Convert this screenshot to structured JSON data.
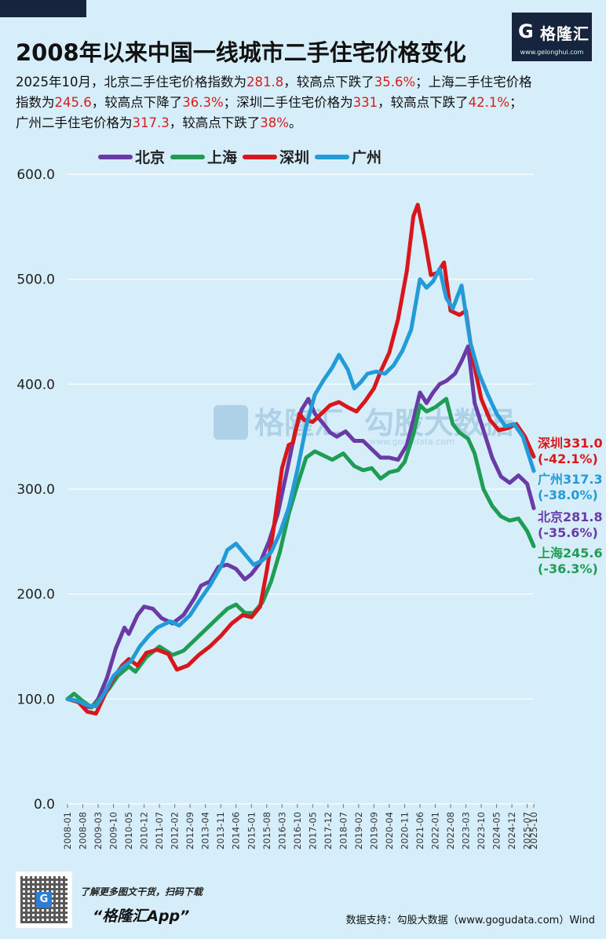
{
  "title": "2008年以来中国一线城市二手住宅价格变化",
  "logo": {
    "mark": "G",
    "name": "格隆汇",
    "url": "www.gelonghui.com"
  },
  "description": {
    "line1": [
      {
        "t": "2025年10月，北京二手住宅价格指数为"
      },
      {
        "t": "281.8",
        "hl": true
      },
      {
        "t": "，较高点下跌了"
      },
      {
        "t": "35.6%",
        "hl": true
      },
      {
        "t": "；上海二手住宅价格"
      }
    ],
    "line2": [
      {
        "t": "指数为"
      },
      {
        "t": "245.6",
        "hl": true
      },
      {
        "t": "，较高点下降了"
      },
      {
        "t": "36.3%",
        "hl": true
      },
      {
        "t": "；深圳二手住宅价格为"
      },
      {
        "t": "331",
        "hl": true
      },
      {
        "t": "，较高点下跌了"
      },
      {
        "t": "42.1%",
        "hl": true
      },
      {
        "t": "；"
      }
    ],
    "line3": [
      {
        "t": "广州二手住宅价格为"
      },
      {
        "t": "317.3",
        "hl": true
      },
      {
        "t": "，较高点下跌了"
      },
      {
        "t": "38%",
        "hl": true
      },
      {
        "t": "。"
      }
    ]
  },
  "watermark": {
    "brand": "格隆汇",
    "sub": "勾股大数据",
    "url": "www.gogudata.com"
  },
  "chart_data": {
    "type": "line",
    "ylim": [
      0,
      600
    ],
    "yticks": [
      "0.0",
      "100.0",
      "200.0",
      "300.0",
      "400.0",
      "500.0",
      "600.0"
    ],
    "x_labels": [
      "2008-01",
      "2008-08",
      "2009-03",
      "2009-10",
      "2010-05",
      "2010-12",
      "2011-07",
      "2012-02",
      "2012-09",
      "2013-04",
      "2013-11",
      "2014-06",
      "2015-01",
      "2015-08",
      "2016-03",
      "2016-10",
      "2017-05",
      "2017-12",
      "2018-07",
      "2019-02",
      "2019-09",
      "2020-04",
      "2020-11",
      "2021-06",
      "2022-01",
      "2022-08",
      "2023-03",
      "2023-10",
      "2024-05",
      "2024-12",
      "2025-07",
      "2025-10"
    ],
    "legend_position": "top",
    "series": [
      {
        "name": "北京",
        "color": "#6a3aa6",
        "end_value": "北京281.8",
        "end_change": "(-35.6%)",
        "points": [
          [
            "2008-01",
            100
          ],
          [
            "2008-06",
            98
          ],
          [
            "2008-09",
            93
          ],
          [
            "2008-12",
            92
          ],
          [
            "2009-03",
            100
          ],
          [
            "2009-07",
            120
          ],
          [
            "2009-11",
            148
          ],
          [
            "2010-03",
            168
          ],
          [
            "2010-05",
            162
          ],
          [
            "2010-09",
            180
          ],
          [
            "2010-12",
            188
          ],
          [
            "2011-04",
            186
          ],
          [
            "2011-08",
            177
          ],
          [
            "2012-01",
            172
          ],
          [
            "2012-06",
            180
          ],
          [
            "2012-11",
            196
          ],
          [
            "2013-02",
            208
          ],
          [
            "2013-06",
            212
          ],
          [
            "2013-10",
            226
          ],
          [
            "2014-02",
            228
          ],
          [
            "2014-06",
            224
          ],
          [
            "2014-10",
            214
          ],
          [
            "2015-01",
            219
          ],
          [
            "2015-05",
            230
          ],
          [
            "2015-09",
            250
          ],
          [
            "2016-01",
            276
          ],
          [
            "2016-05",
            315
          ],
          [
            "2016-09",
            355
          ],
          [
            "2016-12",
            376
          ],
          [
            "2017-03",
            386
          ],
          [
            "2017-06",
            372
          ],
          [
            "2017-10",
            362
          ],
          [
            "2018-01",
            354
          ],
          [
            "2018-04",
            350
          ],
          [
            "2018-08",
            355
          ],
          [
            "2018-12",
            346
          ],
          [
            "2019-04",
            346
          ],
          [
            "2019-08",
            338
          ],
          [
            "2019-12",
            330
          ],
          [
            "2020-04",
            330
          ],
          [
            "2020-08",
            328
          ],
          [
            "2020-12",
            342
          ],
          [
            "2021-03",
            366
          ],
          [
            "2021-06",
            392
          ],
          [
            "2021-09",
            382
          ],
          [
            "2021-12",
            392
          ],
          [
            "2022-03",
            400
          ],
          [
            "2022-06",
            403
          ],
          [
            "2022-10",
            410
          ],
          [
            "2023-01",
            422
          ],
          [
            "2023-04",
            436
          ],
          [
            "2023-07",
            382
          ],
          [
            "2023-11",
            356
          ],
          [
            "2024-03",
            330
          ],
          [
            "2024-07",
            312
          ],
          [
            "2024-11",
            306
          ],
          [
            "2025-03",
            313
          ],
          [
            "2025-07",
            305
          ],
          [
            "2025-10",
            281.8
          ]
        ]
      },
      {
        "name": "上海",
        "color": "#1f9d55",
        "end_value": "上海245.6",
        "end_change": "(-36.3%)",
        "points": [
          [
            "2008-01",
            100
          ],
          [
            "2008-04",
            105
          ],
          [
            "2008-08",
            98
          ],
          [
            "2008-12",
            92
          ],
          [
            "2009-03",
            98
          ],
          [
            "2009-08",
            110
          ],
          [
            "2009-12",
            122
          ],
          [
            "2010-05",
            131
          ],
          [
            "2010-08",
            126
          ],
          [
            "2011-01",
            140
          ],
          [
            "2011-07",
            150
          ],
          [
            "2012-01",
            142
          ],
          [
            "2012-06",
            146
          ],
          [
            "2012-11",
            156
          ],
          [
            "2013-04",
            166
          ],
          [
            "2013-09",
            176
          ],
          [
            "2014-02",
            186
          ],
          [
            "2014-06",
            190
          ],
          [
            "2014-10",
            182
          ],
          [
            "2015-02",
            182
          ],
          [
            "2015-06",
            192
          ],
          [
            "2015-10",
            212
          ],
          [
            "2016-02",
            240
          ],
          [
            "2016-06",
            276
          ],
          [
            "2016-10",
            304
          ],
          [
            "2017-02",
            330
          ],
          [
            "2017-06",
            336
          ],
          [
            "2017-10",
            332
          ],
          [
            "2018-02",
            328
          ],
          [
            "2018-07",
            334
          ],
          [
            "2018-12",
            322
          ],
          [
            "2019-04",
            318
          ],
          [
            "2019-08",
            320
          ],
          [
            "2019-12",
            310
          ],
          [
            "2020-04",
            316
          ],
          [
            "2020-08",
            318
          ],
          [
            "2020-11",
            326
          ],
          [
            "2021-03",
            352
          ],
          [
            "2021-06",
            380
          ],
          [
            "2021-09",
            374
          ],
          [
            "2022-01",
            378
          ],
          [
            "2022-06",
            386
          ],
          [
            "2022-09",
            362
          ],
          [
            "2022-12",
            354
          ],
          [
            "2023-04",
            348
          ],
          [
            "2023-07",
            334
          ],
          [
            "2023-11",
            300
          ],
          [
            "2024-03",
            284
          ],
          [
            "2024-07",
            274
          ],
          [
            "2024-11",
            270
          ],
          [
            "2025-03",
            272
          ],
          [
            "2025-07",
            260
          ],
          [
            "2025-10",
            245.6
          ]
        ]
      },
      {
        "name": "深圳",
        "color": "#d8161c",
        "end_value": "深圳331.0",
        "end_change": "(-42.1%)",
        "points": [
          [
            "2008-01",
            100
          ],
          [
            "2008-06",
            97
          ],
          [
            "2008-10",
            88
          ],
          [
            "2009-02",
            86
          ],
          [
            "2009-06",
            104
          ],
          [
            "2009-10",
            120
          ],
          [
            "2010-02",
            132
          ],
          [
            "2010-05",
            138
          ],
          [
            "2010-09",
            132
          ],
          [
            "2011-01",
            144
          ],
          [
            "2011-06",
            147
          ],
          [
            "2011-11",
            143
          ],
          [
            "2012-03",
            128
          ],
          [
            "2012-08",
            132
          ],
          [
            "2013-01",
            142
          ],
          [
            "2013-06",
            150
          ],
          [
            "2013-11",
            160
          ],
          [
            "2014-04",
            172
          ],
          [
            "2014-09",
            180
          ],
          [
            "2015-01",
            178
          ],
          [
            "2015-05",
            188
          ],
          [
            "2015-08",
            222
          ],
          [
            "2015-11",
            260
          ],
          [
            "2016-03",
            320
          ],
          [
            "2016-06",
            342
          ],
          [
            "2016-08",
            344
          ],
          [
            "2016-11",
            372
          ],
          [
            "2017-01",
            366
          ],
          [
            "2017-05",
            364
          ],
          [
            "2017-09",
            372
          ],
          [
            "2018-01",
            380
          ],
          [
            "2018-05",
            383
          ],
          [
            "2018-09",
            378
          ],
          [
            "2019-01",
            374
          ],
          [
            "2019-05",
            384
          ],
          [
            "2019-09",
            396
          ],
          [
            "2019-12",
            412
          ],
          [
            "2020-04",
            430
          ],
          [
            "2020-08",
            462
          ],
          [
            "2020-12",
            508
          ],
          [
            "2021-03",
            560
          ],
          [
            "2021-05",
            571
          ],
          [
            "2021-08",
            540
          ],
          [
            "2021-11",
            504
          ],
          [
            "2022-02",
            506
          ],
          [
            "2022-05",
            516
          ],
          [
            "2022-08",
            470
          ],
          [
            "2022-12",
            466
          ],
          [
            "2023-03",
            470
          ],
          [
            "2023-06",
            426
          ],
          [
            "2023-10",
            386
          ],
          [
            "2024-02",
            366
          ],
          [
            "2024-06",
            356
          ],
          [
            "2024-10",
            358
          ],
          [
            "2025-02",
            362
          ],
          [
            "2025-06",
            350
          ],
          [
            "2025-10",
            331
          ]
        ]
      },
      {
        "name": "广州",
        "color": "#239bd8",
        "end_value": "广州317.3",
        "end_change": "(-38.0%)",
        "points": [
          [
            "2008-01",
            100
          ],
          [
            "2008-06",
            98
          ],
          [
            "2008-10",
            94
          ],
          [
            "2009-02",
            93
          ],
          [
            "2009-06",
            106
          ],
          [
            "2009-10",
            122
          ],
          [
            "2010-02",
            130
          ],
          [
            "2010-06",
            136
          ],
          [
            "2010-10",
            150
          ],
          [
            "2011-02",
            160
          ],
          [
            "2011-06",
            168
          ],
          [
            "2011-12",
            174
          ],
          [
            "2012-04",
            170
          ],
          [
            "2012-09",
            180
          ],
          [
            "2013-02",
            196
          ],
          [
            "2013-06",
            208
          ],
          [
            "2013-11",
            226
          ],
          [
            "2014-02",
            242
          ],
          [
            "2014-06",
            248
          ],
          [
            "2014-10",
            238
          ],
          [
            "2015-02",
            228
          ],
          [
            "2015-06",
            232
          ],
          [
            "2015-10",
            240
          ],
          [
            "2016-02",
            258
          ],
          [
            "2016-06",
            282
          ],
          [
            "2016-10",
            318
          ],
          [
            "2017-02",
            360
          ],
          [
            "2017-06",
            390
          ],
          [
            "2017-10",
            404
          ],
          [
            "2018-02",
            416
          ],
          [
            "2018-05",
            428
          ],
          [
            "2018-09",
            414
          ],
          [
            "2018-12",
            396
          ],
          [
            "2019-03",
            402
          ],
          [
            "2019-06",
            410
          ],
          [
            "2019-10",
            412
          ],
          [
            "2020-02",
            410
          ],
          [
            "2020-06",
            418
          ],
          [
            "2020-10",
            432
          ],
          [
            "2021-02",
            452
          ],
          [
            "2021-06",
            500
          ],
          [
            "2021-09",
            492
          ],
          [
            "2021-12",
            498
          ],
          [
            "2022-03",
            510
          ],
          [
            "2022-06",
            482
          ],
          [
            "2022-09",
            472
          ],
          [
            "2023-01",
            494
          ],
          [
            "2023-05",
            440
          ],
          [
            "2023-09",
            410
          ],
          [
            "2024-01",
            390
          ],
          [
            "2024-05",
            372
          ],
          [
            "2024-09",
            360
          ],
          [
            "2025-01",
            362
          ],
          [
            "2025-05",
            350
          ],
          [
            "2025-10",
            317.3
          ]
        ]
      }
    ]
  },
  "footer": {
    "qr_center": "G",
    "tip": "了解更多图文干货，扫码下载",
    "app": "“格隆汇App”",
    "source": "数据支持：勾股大数据（www.gogudata.com）Wind"
  }
}
